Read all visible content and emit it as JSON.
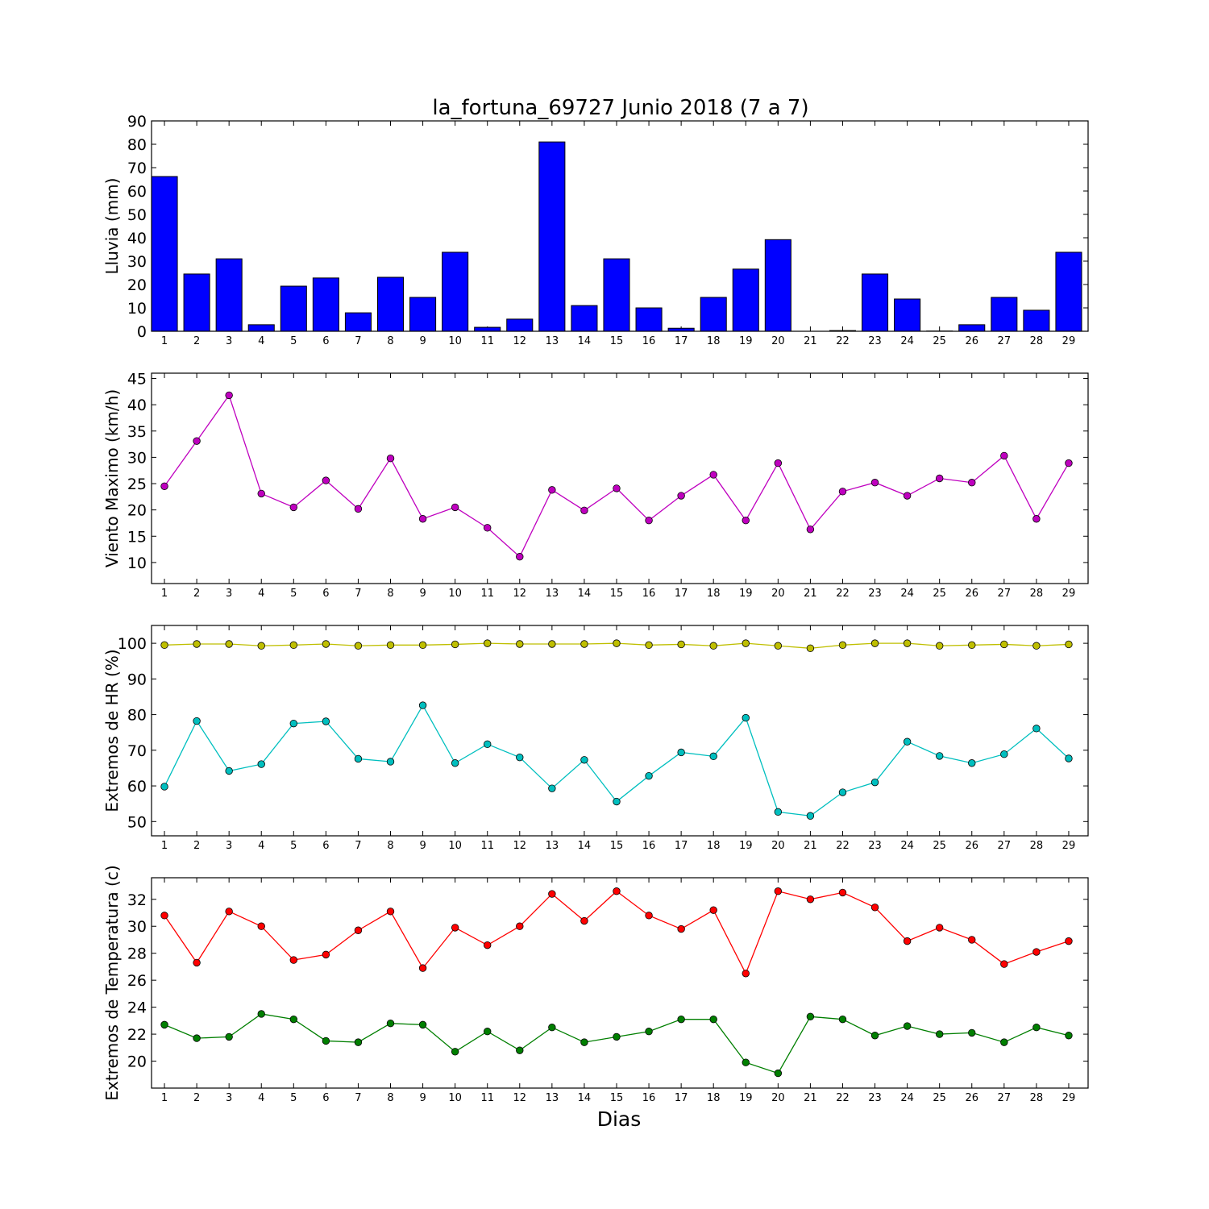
{
  "chart_data": {
    "title": "la_fortuna_69727 Junio 2018  (7 a 7)",
    "xlabel": "Dias",
    "type": "figure",
    "days": [
      1,
      2,
      3,
      4,
      5,
      6,
      7,
      8,
      9,
      10,
      11,
      12,
      13,
      14,
      15,
      16,
      17,
      18,
      19,
      20,
      21,
      22,
      23,
      24,
      25,
      26,
      27,
      28,
      29
    ],
    "panels": [
      {
        "type": "bar",
        "ylabel": "Lluvia (mm)",
        "ylim": [
          0,
          90
        ],
        "yticks": [
          0,
          10,
          20,
          30,
          40,
          50,
          60,
          70,
          80,
          90
        ],
        "series": [
          {
            "values": [
              66.2,
              24.5,
              31.0,
              2.8,
              19.3,
              22.8,
              7.9,
              23.1,
              14.5,
              33.8,
              1.7,
              5.2,
              81.0,
              11.0,
              31.0,
              10.0,
              1.3,
              14.5,
              26.6,
              39.2,
              0.0,
              0.3,
              24.5,
              13.8,
              0.1,
              2.8,
              14.5,
              9.0,
              33.8
            ],
            "color": "#0000ff"
          }
        ]
      },
      {
        "type": "line",
        "ylabel": "Viento Maximo (km/h)",
        "ylim": [
          6,
          46
        ],
        "yticks": [
          10,
          15,
          20,
          25,
          30,
          35,
          40,
          45
        ],
        "series": [
          {
            "values": [
              24.5,
              33.1,
              41.8,
              23.1,
              20.5,
              25.6,
              20.2,
              29.8,
              18.3,
              20.5,
              16.6,
              11.1,
              23.8,
              19.9,
              24.1,
              18.0,
              22.7,
              26.7,
              18.0,
              28.9,
              16.3,
              23.5,
              25.2,
              22.7,
              26.0,
              25.2,
              30.3,
              18.3,
              28.9
            ],
            "color": "#bf00bf"
          }
        ]
      },
      {
        "type": "line",
        "ylabel": "Extremos de HR (%)",
        "ylim": [
          46,
          105
        ],
        "yticks": [
          50,
          60,
          70,
          80,
          90,
          100
        ],
        "series": [
          {
            "values": [
              99.5,
              99.8,
              99.8,
              99.3,
              99.5,
              99.8,
              99.3,
              99.5,
              99.5,
              99.7,
              100.0,
              99.8,
              99.8,
              99.8,
              100.0,
              99.5,
              99.7,
              99.3,
              100.0,
              99.3,
              98.6,
              99.5,
              100.0,
              100.0,
              99.3,
              99.5,
              99.7,
              99.3,
              99.7
            ],
            "color": "#bfbf00"
          },
          {
            "values": [
              59.8,
              78.2,
              64.2,
              66.1,
              77.5,
              78.1,
              67.6,
              66.8,
              82.6,
              66.4,
              71.7,
              68.0,
              59.3,
              67.3,
              55.6,
              62.8,
              69.4,
              68.3,
              79.1,
              52.7,
              51.6,
              58.2,
              61.0,
              72.4,
              68.4,
              66.4,
              68.9,
              76.1,
              67.7
            ],
            "color": "#00bfbf"
          }
        ]
      },
      {
        "type": "line",
        "ylabel": "Extremos de Temperatura (c)",
        "ylim": [
          18,
          33.6
        ],
        "yticks": [
          20,
          22,
          24,
          26,
          28,
          30,
          32
        ],
        "series": [
          {
            "values": [
              30.8,
              27.3,
              31.1,
              30.0,
              27.5,
              27.9,
              29.7,
              31.1,
              26.9,
              29.9,
              28.6,
              30.0,
              32.4,
              30.4,
              32.6,
              30.8,
              29.8,
              31.2,
              26.5,
              32.6,
              32.0,
              32.5,
              31.4,
              28.9,
              29.9,
              29.0,
              27.2,
              28.1,
              28.9
            ],
            "color": "#ff0000"
          },
          {
            "values": [
              22.7,
              21.7,
              21.8,
              23.5,
              23.1,
              21.5,
              21.4,
              22.8,
              22.7,
              20.7,
              22.2,
              20.8,
              22.5,
              21.4,
              21.8,
              22.2,
              23.1,
              23.1,
              19.9,
              19.1,
              23.3,
              23.1,
              21.9,
              22.6,
              22.0,
              22.1,
              21.4,
              22.5,
              21.9
            ],
            "color": "#007f00"
          }
        ]
      }
    ]
  }
}
